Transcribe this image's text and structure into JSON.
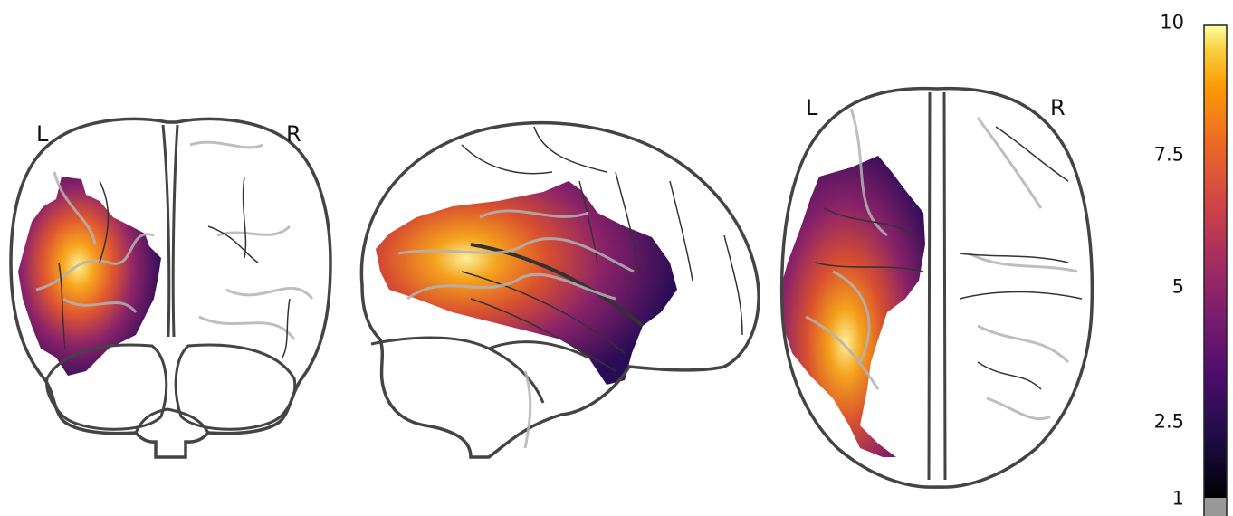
{
  "orientation_labels": {
    "coronal_left": "L",
    "coronal_right": "R",
    "axial_left": "L",
    "axial_right": "R"
  },
  "colorbar": {
    "colormap": "inferno",
    "tick_labels": [
      "10",
      "7.5",
      "5",
      "2.5",
      "1"
    ],
    "tick_values": [
      10,
      7.5,
      5,
      2.5,
      1
    ],
    "vmin": 1,
    "vmax": 10,
    "below_threshold_color": "#999999"
  },
  "colors": {
    "outline": "#444444",
    "gyri": "#b3b3b3",
    "sulci": "#333333"
  }
}
